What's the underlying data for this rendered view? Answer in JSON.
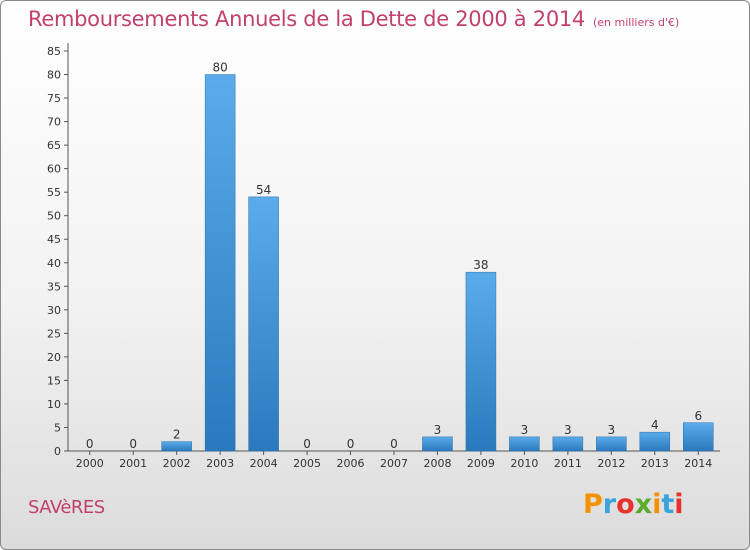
{
  "header": {
    "title": "Remboursements Annuels de la Dette de 2000 à 2014",
    "unit": "(en milliers d'€)"
  },
  "footer": {
    "commune": "SAVèRES",
    "logo": "Proxiti",
    "logo_colors": [
      "#f39200",
      "#3aa3da",
      "#e7312b",
      "#5aab2e",
      "#f39200",
      "#3aa3da",
      "#e7312b"
    ]
  },
  "chart_data": {
    "type": "bar",
    "title": "Remboursements Annuels de la Dette de 2000 à 2014",
    "subtitle": "(en milliers d'€)",
    "xlabel": "",
    "ylabel": "",
    "categories": [
      "2000",
      "2001",
      "2002",
      "2003",
      "2004",
      "2005",
      "2006",
      "2007",
      "2008",
      "2009",
      "2010",
      "2011",
      "2012",
      "2013",
      "2014"
    ],
    "values": [
      0,
      0,
      2,
      80,
      54,
      0,
      0,
      0,
      3,
      38,
      3,
      3,
      3,
      4,
      6
    ],
    "data_labels": [
      "0",
      "0",
      "2",
      "80",
      "54",
      "0",
      "0",
      "0",
      "3",
      "38",
      "3",
      "3",
      "3",
      "4",
      "6"
    ],
    "ylim": [
      0,
      85
    ],
    "yticks": [
      0,
      5,
      10,
      15,
      20,
      25,
      30,
      35,
      40,
      45,
      50,
      55,
      60,
      65,
      70,
      75,
      80,
      85
    ],
    "grid": false,
    "legend": "none",
    "bar_color": "#3d8fd3"
  }
}
